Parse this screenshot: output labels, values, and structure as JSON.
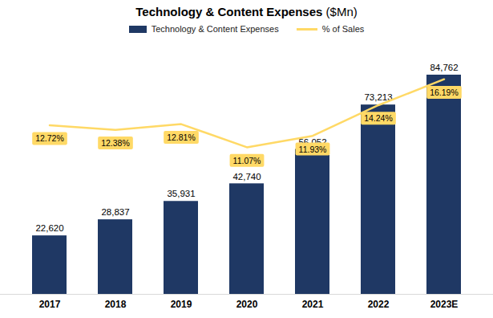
{
  "chart_data": {
    "type": "bar",
    "title": "Technology & Content Expenses ($Mn)",
    "categories": [
      "2017",
      "2018",
      "2019",
      "2020",
      "2021",
      "2022",
      "2023E"
    ],
    "series": [
      {
        "name": "Technology & Content Expenses",
        "type": "bar",
        "color": "#1f3864",
        "values": [
          22620,
          28837,
          35931,
          42740,
          56052,
          73213,
          84762
        ],
        "value_labels": [
          "22,620",
          "28,837",
          "35,931",
          "42,740",
          "56,052",
          "73,213",
          "84,762"
        ]
      },
      {
        "name": "% of Sales",
        "type": "line",
        "axis": "y2",
        "color": "#ffd966",
        "values": [
          12.72,
          12.38,
          12.81,
          11.07,
          11.93,
          14.24,
          16.19
        ],
        "value_labels": [
          "12.72%",
          "12.38%",
          "12.81%",
          "11.07%",
          "11.93%",
          "14.24%",
          "16.19%"
        ]
      }
    ],
    "ylim": [
      0,
      95000
    ],
    "y2lim": [
      0,
      18.5
    ],
    "data_labels": true,
    "tick_labels": "x",
    "legend": "top",
    "grid": false
  }
}
